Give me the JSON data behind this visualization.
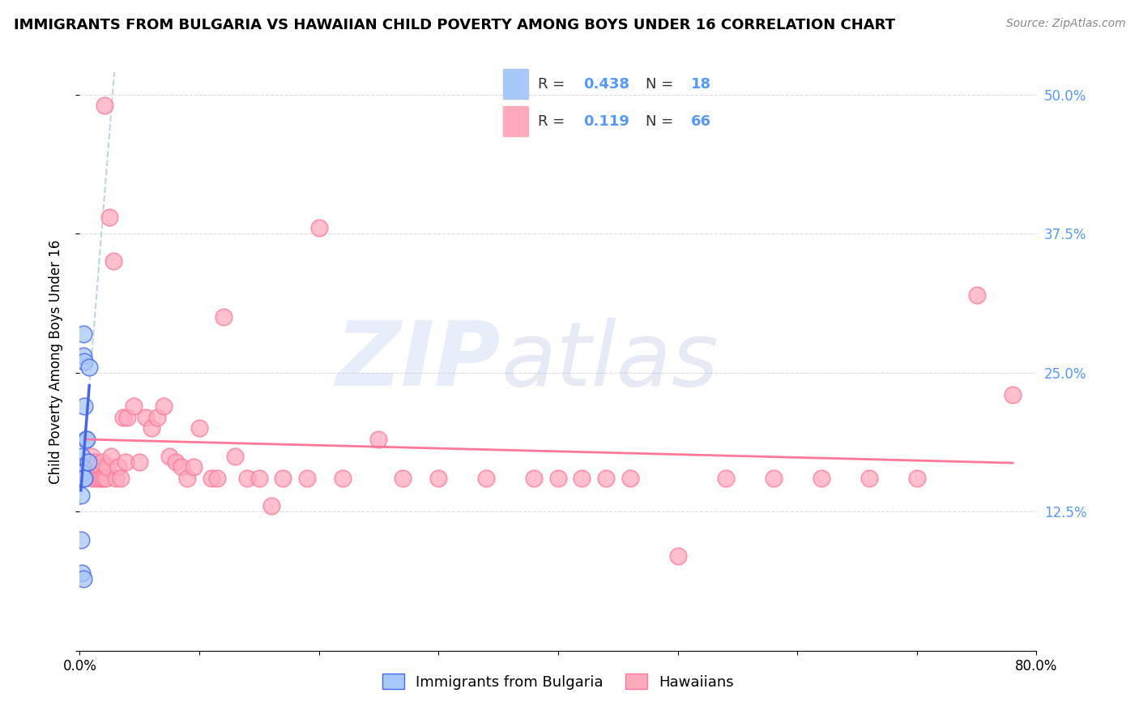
{
  "title": "IMMIGRANTS FROM BULGARIA VS HAWAIIAN CHILD POVERTY AMONG BOYS UNDER 16 CORRELATION CHART",
  "source": "Source: ZipAtlas.com",
  "ylabel": "Child Poverty Among Boys Under 16",
  "xlim": [
    0.0,
    0.8
  ],
  "ylim": [
    0.0,
    0.52
  ],
  "color_bulgaria": "#a8c8fa",
  "color_hawaii": "#ffaabb",
  "color_line_bulgaria": "#4466ee",
  "color_line_hawaii": "#ff7799",
  "color_line_dashed": "#aaccdd",
  "bg_color": "#ffffff",
  "grid_color": "#dddddd",
  "r1": "0.438",
  "n1": "18",
  "r2": "0.119",
  "n2": "66",
  "bulgaria_scatter_x": [
    0.001,
    0.001,
    0.001,
    0.002,
    0.002,
    0.002,
    0.002,
    0.003,
    0.003,
    0.003,
    0.003,
    0.004,
    0.004,
    0.004,
    0.005,
    0.006,
    0.007,
    0.008
  ],
  "bulgaria_scatter_y": [
    0.155,
    0.14,
    0.1,
    0.175,
    0.165,
    0.16,
    0.07,
    0.065,
    0.155,
    0.285,
    0.265,
    0.155,
    0.26,
    0.22,
    0.19,
    0.19,
    0.17,
    0.255
  ],
  "hawaii_scatter_x": [
    0.005,
    0.007,
    0.008,
    0.01,
    0.01,
    0.011,
    0.012,
    0.013,
    0.015,
    0.016,
    0.017,
    0.018,
    0.019,
    0.02,
    0.021,
    0.022,
    0.023,
    0.025,
    0.026,
    0.028,
    0.03,
    0.032,
    0.034,
    0.036,
    0.038,
    0.04,
    0.045,
    0.05,
    0.055,
    0.06,
    0.065,
    0.07,
    0.075,
    0.08,
    0.085,
    0.09,
    0.095,
    0.1,
    0.11,
    0.115,
    0.12,
    0.13,
    0.14,
    0.15,
    0.16,
    0.17,
    0.19,
    0.2,
    0.22,
    0.25,
    0.27,
    0.3,
    0.34,
    0.38,
    0.4,
    0.42,
    0.44,
    0.46,
    0.5,
    0.54,
    0.58,
    0.62,
    0.66,
    0.7,
    0.75,
    0.78
  ],
  "hawaii_scatter_y": [
    0.16,
    0.165,
    0.17,
    0.175,
    0.155,
    0.165,
    0.17,
    0.155,
    0.16,
    0.155,
    0.165,
    0.155,
    0.17,
    0.155,
    0.49,
    0.155,
    0.165,
    0.39,
    0.175,
    0.35,
    0.155,
    0.165,
    0.155,
    0.21,
    0.17,
    0.21,
    0.22,
    0.17,
    0.21,
    0.2,
    0.21,
    0.22,
    0.175,
    0.17,
    0.165,
    0.155,
    0.165,
    0.2,
    0.155,
    0.155,
    0.3,
    0.175,
    0.155,
    0.155,
    0.13,
    0.155,
    0.155,
    0.38,
    0.155,
    0.19,
    0.155,
    0.155,
    0.155,
    0.155,
    0.155,
    0.155,
    0.155,
    0.155,
    0.085,
    0.155,
    0.155,
    0.155,
    0.155,
    0.155,
    0.32,
    0.23
  ]
}
